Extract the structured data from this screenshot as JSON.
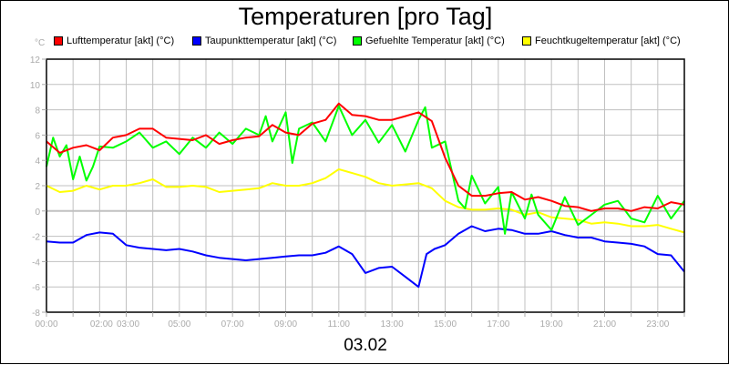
{
  "title": "Temperaturen [pro Tag]",
  "subtitle": "03.02",
  "y_unit": "°C",
  "legend": [
    {
      "label": "Lufttemperatur [akt] (°C)",
      "color": "#ff0000"
    },
    {
      "label": "Taupunkttemperatur [akt] (°C)",
      "color": "#0000ff"
    },
    {
      "label": "Gefuehlte Temperatur [akt] (°C)",
      "color": "#00ff00"
    },
    {
      "label": "Feuchtkugeltemperatur [akt] (°C)",
      "color": "#ffff00"
    }
  ],
  "chart_data": {
    "type": "line",
    "title": "Temperaturen [pro Tag]",
    "subtitle": "03.02",
    "xlabel": "",
    "ylabel": "°C",
    "ylim": [
      -8,
      12
    ],
    "xlim": [
      0,
      24
    ],
    "grid": true,
    "legend_position": "top",
    "y_ticks": [
      12,
      10,
      8,
      6,
      4,
      2,
      0,
      -2,
      -4,
      -6,
      -8
    ],
    "x_ticks": [
      {
        "h": 0,
        "label": "00:00"
      },
      {
        "h": 2,
        "label": "02:00"
      },
      {
        "h": 3,
        "label": "03:00"
      },
      {
        "h": 5,
        "label": "05:00"
      },
      {
        "h": 7,
        "label": "07:00"
      },
      {
        "h": 9,
        "label": "09:00"
      },
      {
        "h": 11,
        "label": "11:00"
      },
      {
        "h": 13,
        "label": "13:00"
      },
      {
        "h": 15,
        "label": "15:00"
      },
      {
        "h": 17,
        "label": "17:00"
      },
      {
        "h": 19,
        "label": "19:00"
      },
      {
        "h": 21,
        "label": "21:00"
      },
      {
        "h": 23,
        "label": "23:00"
      }
    ],
    "x_minor_ticks": [
      1,
      4,
      6,
      8,
      10,
      12,
      14,
      16,
      18,
      20,
      22,
      24
    ],
    "series": [
      {
        "name": "Lufttemperatur [akt] (°C)",
        "color": "#ff0000",
        "x": [
          0,
          0.5,
          1,
          1.5,
          2,
          2.5,
          3,
          3.5,
          4,
          4.5,
          5,
          5.5,
          6,
          6.5,
          7,
          7.5,
          8,
          8.5,
          9,
          9.5,
          10,
          10.5,
          11,
          11.5,
          12,
          12.5,
          13,
          13.5,
          14,
          14.5,
          15,
          15.5,
          16,
          16.5,
          17,
          17.5,
          18,
          18.5,
          19,
          19.5,
          20,
          20.5,
          21,
          21.5,
          22,
          22.5,
          23,
          23.5,
          24
        ],
        "values": [
          5.5,
          4.6,
          5.0,
          5.2,
          4.8,
          5.8,
          6.0,
          6.5,
          6.5,
          5.8,
          5.7,
          5.6,
          6.0,
          5.3,
          5.6,
          5.8,
          5.9,
          6.8,
          6.2,
          6.0,
          6.9,
          7.2,
          8.5,
          7.6,
          7.5,
          7.2,
          7.2,
          7.5,
          7.8,
          7.1,
          4.2,
          2.0,
          1.2,
          1.2,
          1.4,
          1.5,
          0.9,
          1.1,
          0.8,
          0.4,
          0.3,
          0.0,
          0.2,
          0.2,
          0.0,
          0.3,
          0.2,
          0.7,
          0.5
        ]
      },
      {
        "name": "Taupunkttemperatur [akt] (°C)",
        "color": "#0000ff",
        "x": [
          0,
          0.5,
          1,
          1.5,
          2,
          2.5,
          3,
          3.5,
          4,
          4.5,
          5,
          5.5,
          6,
          6.5,
          7,
          7.5,
          8,
          8.5,
          9,
          9.5,
          10,
          10.5,
          11,
          11.5,
          12,
          12.5,
          13,
          13.5,
          14,
          14.3,
          14.6,
          15,
          15.5,
          16,
          16.5,
          17,
          17.5,
          18,
          18.5,
          19,
          19.5,
          20,
          20.5,
          21,
          21.5,
          22,
          22.5,
          23,
          23.5,
          24
        ],
        "values": [
          -2.4,
          -2.5,
          -2.5,
          -1.9,
          -1.7,
          -1.8,
          -2.7,
          -2.9,
          -3.0,
          -3.1,
          -3.0,
          -3.2,
          -3.5,
          -3.7,
          -3.8,
          -3.9,
          -3.8,
          -3.7,
          -3.6,
          -3.5,
          -3.5,
          -3.3,
          -2.8,
          -3.4,
          -4.9,
          -4.5,
          -4.4,
          -5.2,
          -6.0,
          -3.4,
          -3.0,
          -2.7,
          -1.8,
          -1.2,
          -1.6,
          -1.4,
          -1.5,
          -1.8,
          -1.8,
          -1.6,
          -1.9,
          -2.1,
          -2.1,
          -2.4,
          -2.5,
          -2.6,
          -2.8,
          -3.4,
          -3.5,
          -4.8
        ]
      },
      {
        "name": "Gefuehlte Temperatur [akt] (°C)",
        "color": "#00ff00",
        "x": [
          0,
          0.25,
          0.5,
          0.75,
          1,
          1.25,
          1.5,
          1.75,
          2,
          2.5,
          3,
          3.5,
          4,
          4.5,
          5,
          5.5,
          6,
          6.5,
          7,
          7.5,
          8,
          8.25,
          8.5,
          9,
          9.25,
          9.5,
          10,
          10.5,
          11,
          11.5,
          12,
          12.5,
          13,
          13.5,
          14,
          14.25,
          14.5,
          15,
          15.5,
          15.75,
          16,
          16.5,
          17,
          17.25,
          17.5,
          18,
          18.25,
          18.5,
          19,
          19.5,
          20,
          20.5,
          21,
          21.5,
          22,
          22.5,
          23,
          23.5,
          24
        ],
        "values": [
          3.5,
          5.8,
          4.3,
          5.2,
          2.5,
          4.3,
          2.4,
          3.5,
          5.1,
          5.0,
          5.5,
          6.2,
          5.0,
          5.5,
          4.5,
          5.8,
          5.0,
          6.2,
          5.3,
          6.5,
          6.0,
          7.5,
          5.5,
          7.8,
          3.8,
          6.5,
          7.0,
          5.5,
          8.3,
          6.0,
          7.2,
          5.4,
          6.8,
          4.7,
          7.2,
          8.2,
          5.0,
          5.5,
          0.8,
          0.2,
          2.8,
          0.6,
          1.9,
          -1.8,
          1.5,
          -0.6,
          1.3,
          -0.3,
          -1.5,
          1.1,
          -1.1,
          -0.3,
          0.5,
          0.8,
          -0.6,
          -0.9,
          1.2,
          -0.6,
          0.8
        ]
      },
      {
        "name": "Feuchtkugeltemperatur [akt] (°C)",
        "color": "#ffff00",
        "x": [
          0,
          0.5,
          1,
          1.5,
          2,
          2.5,
          3,
          3.5,
          4,
          4.5,
          5,
          5.5,
          6,
          6.5,
          7,
          7.5,
          8,
          8.5,
          9,
          9.5,
          10,
          10.5,
          11,
          11.5,
          12,
          12.5,
          13,
          13.5,
          14,
          14.5,
          15,
          15.5,
          16,
          16.5,
          17,
          17.5,
          18,
          18.5,
          19,
          19.5,
          20,
          20.5,
          21,
          21.5,
          22,
          22.5,
          23,
          23.5,
          24
        ],
        "values": [
          2.0,
          1.5,
          1.6,
          2.0,
          1.7,
          2.0,
          2.0,
          2.2,
          2.5,
          1.9,
          1.9,
          2.0,
          1.9,
          1.5,
          1.6,
          1.7,
          1.8,
          2.2,
          2.0,
          2.0,
          2.2,
          2.6,
          3.3,
          3.0,
          2.7,
          2.2,
          2.0,
          2.1,
          2.2,
          1.8,
          0.8,
          0.3,
          0.1,
          0.1,
          0.2,
          0.1,
          -0.3,
          -0.1,
          -0.5,
          -0.6,
          -0.7,
          -1.0,
          -0.9,
          -1.0,
          -1.2,
          -1.2,
          -1.1,
          -1.4,
          -1.7
        ]
      }
    ]
  }
}
